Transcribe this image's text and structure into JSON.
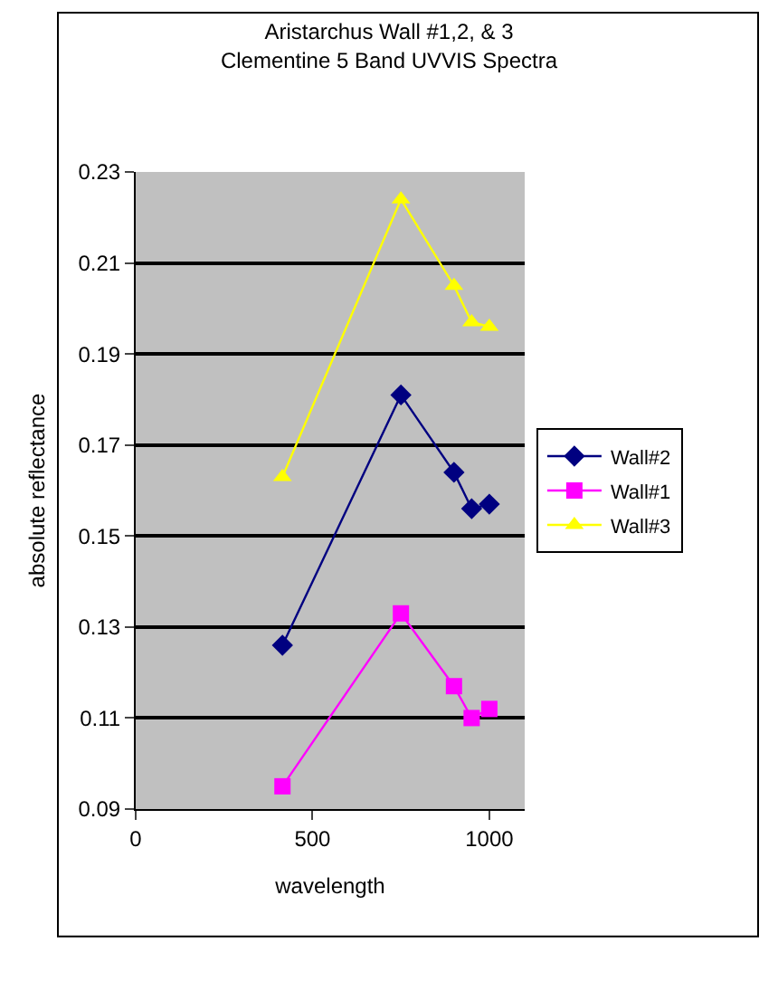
{
  "chart_data": {
    "type": "line",
    "title": "Aristarchus Wall #1,2, & 3",
    "subtitle": "Clementine 5 Band UVVIS Spectra",
    "xlabel": "wavelength",
    "ylabel": "absolute reflectance",
    "x": [
      415,
      750,
      900,
      950,
      1000
    ],
    "series": [
      {
        "name": "Wall#2",
        "color": "#000080",
        "marker": "diamond",
        "values": [
          0.126,
          0.181,
          0.164,
          0.156,
          0.157
        ]
      },
      {
        "name": "Wall#1",
        "color": "#ff00ff",
        "marker": "square",
        "values": [
          0.095,
          0.133,
          0.117,
          0.11,
          0.112
        ]
      },
      {
        "name": "Wall#3",
        "color": "#ffff00",
        "marker": "triangle",
        "values": [
          0.163,
          0.224,
          0.205,
          0.197,
          0.196
        ]
      }
    ],
    "xlim": [
      0,
      1100
    ],
    "xticks": [
      0,
      500,
      1000
    ],
    "ylim": [
      0.09,
      0.23
    ],
    "yticks": [
      0.09,
      0.11,
      0.13,
      0.15,
      0.17,
      0.19,
      0.21,
      0.23
    ],
    "grid": "y",
    "legend": "right",
    "line_style": "solid"
  }
}
